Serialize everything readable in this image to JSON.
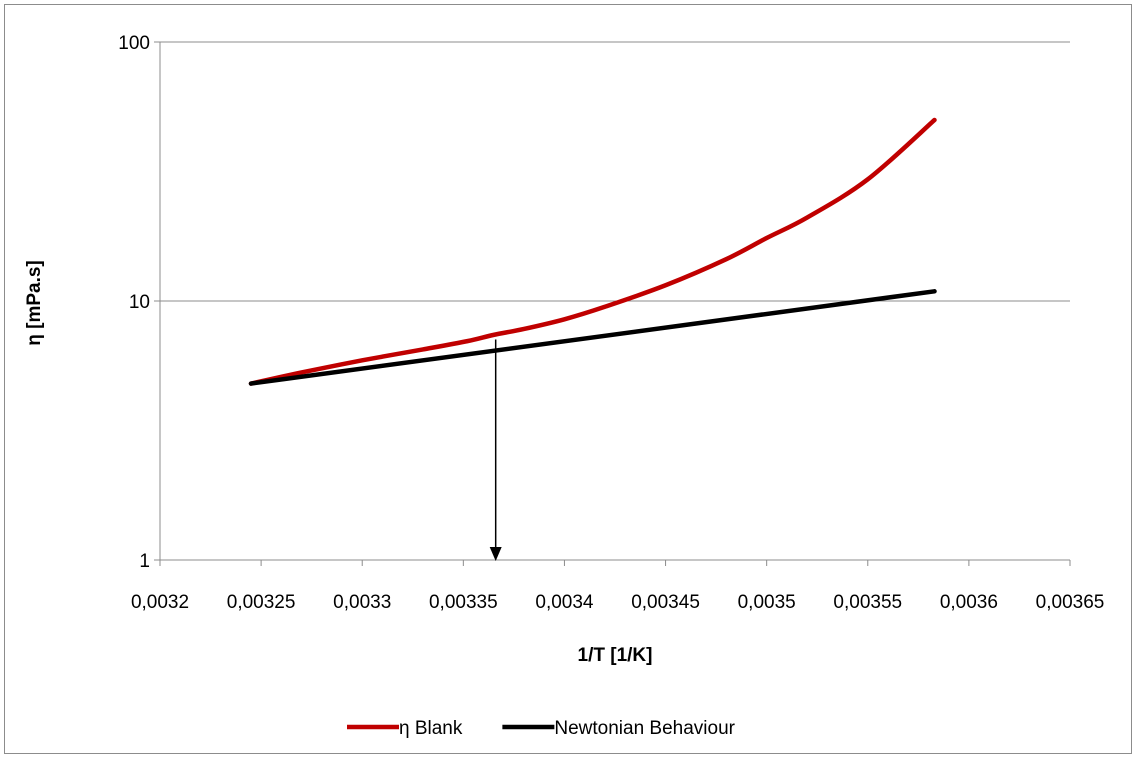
{
  "chart_data": {
    "type": "line",
    "title": "",
    "xlabel": "1/T [1/K]",
    "ylabel": "η [mPa.s]",
    "xlim": [
      0.0032,
      0.00365
    ],
    "ylim": [
      1,
      100
    ],
    "yscale": "log",
    "x_tick_values": [
      0.0032,
      0.00325,
      0.0033,
      0.00335,
      0.0034,
      0.00345,
      0.0035,
      0.00355,
      0.0036,
      0.00365
    ],
    "x_tick_labels": [
      "0,0032",
      "0,00325",
      "0,0033",
      "0,00335",
      "0,0034",
      "0,00345",
      "0,0035",
      "0,00355",
      "0,0036",
      "0,00365"
    ],
    "y_tick_values": [
      1,
      10,
      100
    ],
    "y_tick_labels": [
      "1",
      "10",
      "100"
    ],
    "grid": "horizontal major",
    "legend_position": "bottom",
    "series": [
      {
        "name": "η Blank",
        "color": "#c00000",
        "x": [
          0.003245,
          0.00327,
          0.0033,
          0.00333,
          0.003352,
          0.003365,
          0.00338,
          0.0034,
          0.00342,
          0.00345,
          0.00348,
          0.0035,
          0.00352,
          0.00355,
          0.003583
        ],
        "y": [
          4.8,
          5.3,
          5.9,
          6.5,
          7.0,
          7.4,
          7.8,
          8.5,
          9.5,
          11.5,
          14.5,
          17.5,
          21.0,
          29.5,
          50.0
        ]
      },
      {
        "name": "Newtonian Behaviour",
        "color": "#000000",
        "x": [
          0.003245,
          0.003583
        ],
        "y": [
          4.8,
          10.9
        ]
      }
    ],
    "annotations": [
      {
        "type": "arrow",
        "x": 0.003366,
        "y_from": 7.1,
        "y_to": 1.0
      }
    ]
  }
}
